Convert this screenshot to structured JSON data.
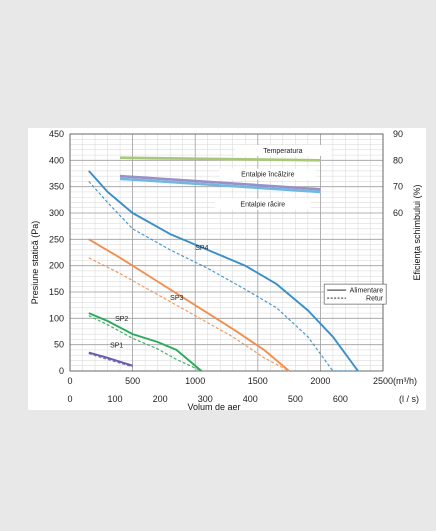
{
  "chart_data": {
    "type": "line",
    "title": "",
    "xlabel": "Volum de aer",
    "ylabel": "Presiune statică (Pa)",
    "y2label": "Eficiența schimbului (%)",
    "x_unit_primary": "(m³/h)",
    "x_unit_secondary": "(l / s)",
    "xlim": [
      0,
      2500
    ],
    "ylim": [
      0,
      450
    ],
    "y2lim": [
      0,
      90
    ],
    "x_ticks": [
      "0",
      "500",
      "1000",
      "1500",
      "2000",
      "2500"
    ],
    "x2_ticks": [
      "0",
      "100",
      "200",
      "300",
      "400",
      "500",
      "600"
    ],
    "y_ticks": [
      "0",
      "50",
      "100",
      "150",
      "200",
      "250",
      "300",
      "350",
      "400",
      "450"
    ],
    "y2_ticks": [
      "60",
      "70",
      "80",
      "90"
    ],
    "grid": true,
    "legend": {
      "placement": "right",
      "entries": [
        {
          "label": "Alimentare",
          "style": "solid"
        },
        {
          "label": "Retur",
          "style": "dashed"
        }
      ]
    },
    "annotations": [
      "Temperatura",
      "Entalpie încălzire",
      "Entalpie răcire"
    ],
    "series": [
      {
        "name": "SP1",
        "color": "#6b5bb0",
        "axis": "left",
        "x": [
          150,
          300,
          500
        ],
        "supply": [
          35,
          25,
          10
        ],
        "return": [
          33,
          22,
          8
        ]
      },
      {
        "name": "SP2",
        "color": "#2eaa5c",
        "axis": "left",
        "x": [
          150,
          300,
          500,
          700,
          850,
          1050
        ],
        "supply": [
          110,
          95,
          70,
          55,
          40,
          0
        ],
        "return": [
          105,
          88,
          62,
          42,
          22,
          0
        ]
      },
      {
        "name": "SP3",
        "color": "#f09050",
        "axis": "left",
        "x": [
          150,
          400,
          700,
          1000,
          1300,
          1550,
          1750
        ],
        "supply": [
          250,
          215,
          170,
          125,
          80,
          40,
          0
        ],
        "return": [
          215,
          185,
          145,
          105,
          65,
          25,
          0
        ]
      },
      {
        "name": "SP4",
        "color": "#3a8fc8",
        "axis": "left",
        "x": [
          150,
          300,
          500,
          800,
          1100,
          1400,
          1650,
          1900,
          2100,
          2300
        ],
        "supply": [
          380,
          340,
          300,
          260,
          230,
          200,
          165,
          115,
          65,
          0
        ],
        "return": [
          360,
          320,
          270,
          230,
          195,
          155,
          120,
          65,
          0,
          0
        ]
      },
      {
        "name": "Temperatura",
        "color": "#a8c878",
        "axis": "right",
        "x": [
          400,
          2000
        ],
        "supply": [
          81,
          80
        ],
        "return": [
          81,
          80
        ]
      },
      {
        "name": "Entalpie încălzire",
        "color": "#9a90c8",
        "axis": "right",
        "x": [
          400,
          2000
        ],
        "supply": [
          74,
          69
        ],
        "return": [
          74,
          69
        ]
      },
      {
        "name": "Entalpie răcire",
        "color": "#70b8e0",
        "axis": "right",
        "x": [
          400,
          2000
        ],
        "supply": [
          73,
          68
        ],
        "return": [
          73,
          68
        ]
      }
    ]
  }
}
